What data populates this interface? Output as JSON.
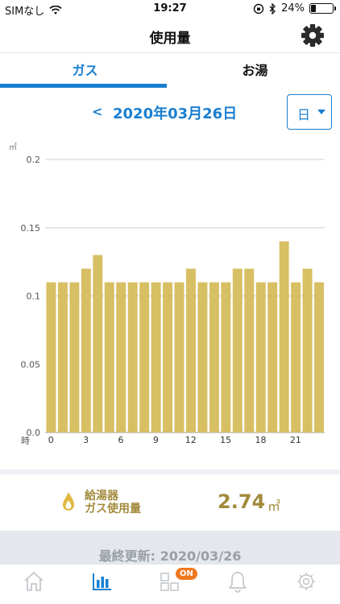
{
  "status_bar": {
    "carrier": "SIMなし",
    "time": "19:27",
    "battery_percent": "24%",
    "battery_level": 0.24
  },
  "nav": {
    "title": "使用量",
    "settings_icon": "gear-icon"
  },
  "tabs": [
    {
      "label": "ガス",
      "active": true
    },
    {
      "label": "お湯",
      "active": false
    }
  ],
  "date_selector": {
    "prev_label": "<",
    "date": "2020年03月26日",
    "period": "日"
  },
  "chart_data": {
    "type": "bar",
    "ylabel": "㎥",
    "xlabel": "時",
    "ylim": [
      0,
      0.2
    ],
    "yticks": [
      "0.0",
      "0.05",
      "0.1",
      "0.15",
      "0.2"
    ],
    "grid": true,
    "bar_color": "#d7bf63",
    "x_tick_labels": [
      "0",
      "3",
      "6",
      "9",
      "12",
      "15",
      "18",
      "21"
    ],
    "categories": [
      0,
      1,
      2,
      3,
      4,
      5,
      6,
      7,
      8,
      9,
      10,
      11,
      12,
      13,
      14,
      15,
      16,
      17,
      18,
      19,
      20,
      21,
      22,
      23
    ],
    "values": [
      0.11,
      0.11,
      0.11,
      0.12,
      0.13,
      0.11,
      0.11,
      0.11,
      0.11,
      0.11,
      0.11,
      0.11,
      0.12,
      0.11,
      0.11,
      0.11,
      0.12,
      0.12,
      0.11,
      0.11,
      0.14,
      0.11,
      0.12,
      0.11
    ]
  },
  "summary": {
    "label_line1": "給湯器",
    "label_line2": "ガス使用量",
    "value": "2.74",
    "unit": "㎥",
    "icon": "flame-icon"
  },
  "updated": {
    "text": "最終更新: 2020/03/26"
  },
  "tabbar": {
    "items": [
      "home-icon",
      "chart-icon",
      "grid-icon",
      "bell-icon",
      "gear-icon"
    ],
    "badge": "ON",
    "active_color": "#1a7fd0",
    "inactive_color": "#c4c8cc"
  }
}
